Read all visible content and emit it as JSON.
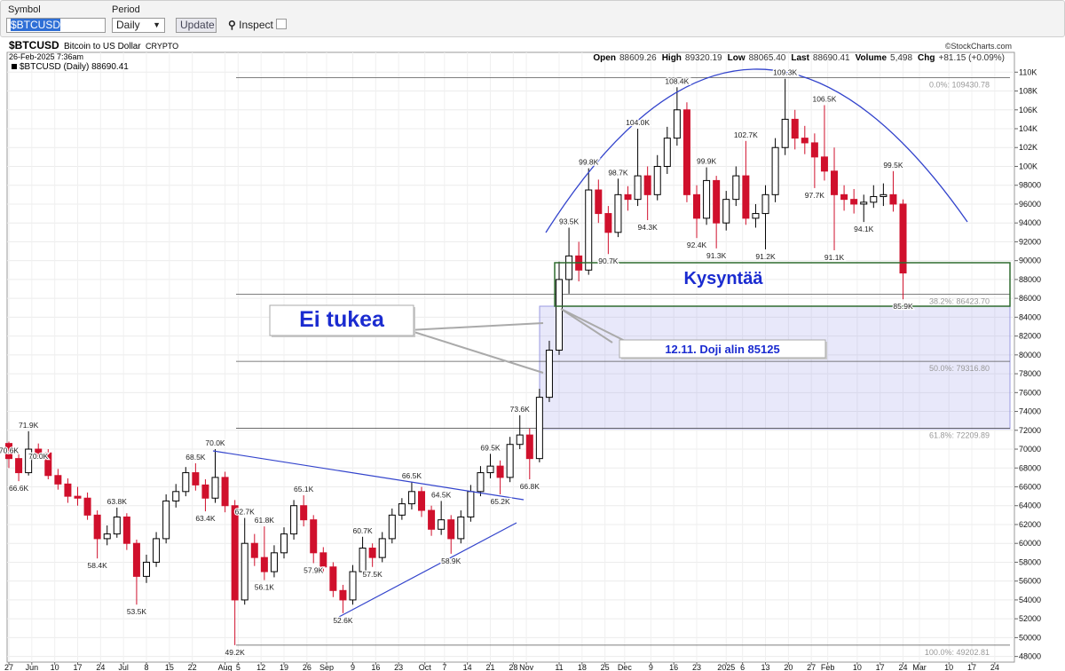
{
  "toolbar": {
    "symbol_label": "Symbol",
    "symbol": "$BTCUSD",
    "period_label": "Period",
    "period": "Daily",
    "update": "Update",
    "inspect": "Inspect"
  },
  "chart_data": {
    "type": "candlestick",
    "symbol": "$BTCUSD",
    "name": "Bitcoin to US Dollar",
    "exchange": "CRYPTO",
    "credit": "©StockCharts.com",
    "date": "26-Feb-2025 7:36am",
    "quote": [
      {
        "label": "Open",
        "value": "88609.26"
      },
      {
        "label": "High",
        "value": "89320.19"
      },
      {
        "label": "Low",
        "value": "88065.40"
      },
      {
        "label": "Last",
        "value": "88690.41"
      },
      {
        "label": "Volume",
        "value": "5,498"
      },
      {
        "label": "Chg",
        "value": "+81.15 (+0.09%)"
      }
    ],
    "legend": "$BTCUSD (Daily) 88690.41",
    "up_color": "#000000",
    "down_color": "#d0102c",
    "candles": {
      "open": [
        70600,
        69000,
        67500,
        70000,
        69600,
        67200,
        66300,
        65000,
        64800,
        63000,
        60500,
        61000,
        62800,
        60000,
        56500,
        58000,
        60500,
        64500,
        65500,
        67500,
        66200,
        64800,
        67000,
        64000,
        54000,
        60000,
        58500,
        57000,
        59000,
        61000,
        64000,
        62500,
        59000,
        57500,
        55000,
        54000,
        57000,
        59500,
        58500,
        60500,
        63000,
        64200,
        65500,
        63500,
        61500,
        62500,
        60500,
        62800,
        65500,
        67500,
        68200,
        67000,
        70500,
        71500,
        69000,
        75500,
        80500,
        88000,
        90500,
        89000,
        97500,
        95000,
        93000,
        97000,
        96500,
        99000,
        97000,
        100000,
        103000,
        106000,
        97000,
        94500,
        98500,
        94000,
        96500,
        99000,
        94500,
        95000,
        97000,
        102000,
        105000,
        103000,
        102500,
        101000,
        99500,
        97000,
        96500,
        96000,
        96200,
        96800,
        97000,
        96000
      ],
      "high": [
        70800,
        69600,
        71900,
        70600,
        70000,
        67900,
        66900,
        66000,
        65400,
        63500,
        61900,
        63800,
        63200,
        60400,
        58800,
        61200,
        65200,
        66300,
        68100,
        68500,
        66800,
        70000,
        67600,
        64600,
        62700,
        61000,
        61800,
        59800,
        61700,
        64600,
        65100,
        63000,
        59600,
        58000,
        55600,
        57700,
        60700,
        60000,
        61200,
        63700,
        64800,
        66500,
        66000,
        64000,
        64500,
        63000,
        63500,
        66200,
        68200,
        69500,
        68800,
        71300,
        73600,
        72200,
        76400,
        81500,
        89900,
        93500,
        92000,
        99800,
        98600,
        95800,
        98700,
        97900,
        104000,
        100000,
        101200,
        104200,
        108400,
        106800,
        98000,
        99900,
        99000,
        97400,
        100000,
        102700,
        96000,
        98000,
        103000,
        109300,
        106000,
        104300,
        103500,
        106500,
        102000,
        98000,
        97600,
        97000,
        98000,
        98200,
        99500,
        96500
      ],
      "low": [
        68000,
        66600,
        67200,
        69000,
        66800,
        65700,
        64300,
        64000,
        62500,
        58400,
        59800,
        60600,
        59300,
        53500,
        55800,
        57500,
        60000,
        63800,
        65000,
        65600,
        63400,
        64300,
        63300,
        49200,
        53500,
        57600,
        56100,
        56400,
        58400,
        60400,
        61800,
        57900,
        56800,
        54300,
        52600,
        53500,
        56500,
        57500,
        58000,
        60000,
        62500,
        63600,
        62800,
        60800,
        60900,
        58900,
        60000,
        62300,
        65000,
        66900,
        65200,
        66500,
        70000,
        66800,
        68600,
        75000,
        80000,
        86500,
        87800,
        88500,
        94000,
        90700,
        92500,
        95300,
        95800,
        94300,
        96400,
        99200,
        102200,
        96200,
        92400,
        93800,
        91300,
        93200,
        95800,
        93800,
        93500,
        91200,
        96200,
        101200,
        101800,
        101300,
        97700,
        98500,
        91100,
        95300,
        95000,
        94100,
        95600,
        95800,
        95200,
        85900
      ],
      "close": [
        69000,
        67500,
        70000,
        69600,
        67200,
        66300,
        65000,
        64800,
        63000,
        60500,
        61000,
        62800,
        60000,
        56500,
        58000,
        60500,
        64500,
        65500,
        67500,
        66200,
        64800,
        67000,
        64000,
        54000,
        60000,
        58500,
        57000,
        59000,
        61000,
        64000,
        62500,
        59000,
        57500,
        55000,
        54000,
        57000,
        59500,
        58500,
        60500,
        63000,
        64200,
        65500,
        63500,
        61500,
        62500,
        60500,
        62800,
        65500,
        67500,
        68200,
        67000,
        70500,
        71500,
        69000,
        75500,
        80500,
        88000,
        90500,
        89000,
        97500,
        95000,
        93000,
        97000,
        96500,
        99000,
        97000,
        100000,
        103000,
        106000,
        97000,
        94500,
        98500,
        94000,
        96500,
        99000,
        94500,
        95000,
        97000,
        102000,
        105000,
        103000,
        102500,
        101000,
        99500,
        97000,
        96500,
        96000,
        96200,
        96800,
        97000,
        96000,
        88690
      ]
    },
    "price_labels": [
      {
        "candle": 0,
        "value": 70600,
        "label": "70.6K"
      },
      {
        "candle": 1,
        "value": 66600,
        "label": "66.6K"
      },
      {
        "candle": 2,
        "value": 71900,
        "label": "71.9K"
      },
      {
        "candle": 3,
        "value": 70000,
        "label": "70.0K"
      },
      {
        "candle": 9,
        "value": 58400,
        "label": "58.4K"
      },
      {
        "candle": 11,
        "value": 63800,
        "label": "63.8K"
      },
      {
        "candle": 13,
        "value": 53500,
        "label": "53.5K"
      },
      {
        "candle": 19,
        "value": 68500,
        "label": "68.5K"
      },
      {
        "candle": 20,
        "value": 63400,
        "label": "63.4K"
      },
      {
        "candle": 21,
        "value": 70000,
        "label": "70.0K"
      },
      {
        "candle": 23,
        "value": 49200,
        "label": "49.2K"
      },
      {
        "candle": 24,
        "value": 62700,
        "label": "62.7K"
      },
      {
        "candle": 26,
        "value": 61800,
        "label": "61.8K"
      },
      {
        "candle": 26,
        "value": 56100,
        "label": "56.1K"
      },
      {
        "candle": 30,
        "value": 65100,
        "label": "65.1K"
      },
      {
        "candle": 31,
        "value": 57900,
        "label": "57.9K"
      },
      {
        "candle": 34,
        "value": 52600,
        "label": "52.6K"
      },
      {
        "candle": 36,
        "value": 60700,
        "label": "60.7K"
      },
      {
        "candle": 37,
        "value": 57500,
        "label": "57.5K"
      },
      {
        "candle": 41,
        "value": 66500,
        "label": "66.5K"
      },
      {
        "candle": 44,
        "value": 64500,
        "label": "64.5K"
      },
      {
        "candle": 45,
        "value": 58900,
        "label": "58.9K"
      },
      {
        "candle": 49,
        "value": 69500,
        "label": "69.5K"
      },
      {
        "candle": 50,
        "value": 65200,
        "label": "65.2K"
      },
      {
        "candle": 52,
        "value": 73600,
        "label": "73.6K"
      },
      {
        "candle": 53,
        "value": 66800,
        "label": "66.8K"
      },
      {
        "candle": 57,
        "value": 93500,
        "label": "93.5K"
      },
      {
        "candle": 59,
        "value": 99800,
        "label": "99.8K"
      },
      {
        "candle": 61,
        "value": 90700,
        "label": "90.7K"
      },
      {
        "candle": 62,
        "value": 98700,
        "label": "98.7K"
      },
      {
        "candle": 64,
        "value": 104000,
        "label": "104.0K"
      },
      {
        "candle": 65,
        "value": 94300,
        "label": "94.3K"
      },
      {
        "candle": 68,
        "value": 108400,
        "label": "108.4K"
      },
      {
        "candle": 70,
        "value": 92400,
        "label": "92.4K"
      },
      {
        "candle": 71,
        "value": 99900,
        "label": "99.9K"
      },
      {
        "candle": 72,
        "value": 91300,
        "label": "91.3K"
      },
      {
        "candle": 75,
        "value": 102700,
        "label": "102.7K"
      },
      {
        "candle": 77,
        "value": 91200,
        "label": "91.2K"
      },
      {
        "candle": 79,
        "value": 109300,
        "label": "109.3K"
      },
      {
        "candle": 82,
        "value": 97700,
        "label": "97.7K"
      },
      {
        "candle": 83,
        "value": 106500,
        "label": "106.5K"
      },
      {
        "candle": 84,
        "value": 91100,
        "label": "91.1K"
      },
      {
        "candle": 87,
        "value": 94100,
        "label": "94.1K"
      },
      {
        "candle": 90,
        "value": 99500,
        "label": "99.5K"
      },
      {
        "candle": 91,
        "value": 85900,
        "label": "85.9K"
      }
    ],
    "fib_levels": [
      {
        "value": 109430.78,
        "label": "0.0%: 109430.78"
      },
      {
        "value": 86423.7,
        "label": "38.2%: 86423.70"
      },
      {
        "value": 79316.8,
        "label": "50.0%: 79316.80"
      },
      {
        "value": 72209.89,
        "label": "61.8%: 72209.89"
      },
      {
        "value": 49202.81,
        "label": "100.0%: 49202.81"
      }
    ],
    "annotations": {
      "demand": "Kysyntää",
      "no_support": "Ei tukea",
      "doji": "12.11. Doji alin 85125"
    },
    "xlim": [
      0,
      307
    ],
    "xticks": [
      {
        "value": 0,
        "label": "27"
      },
      {
        "value": 7,
        "label": "Jun"
      },
      {
        "value": 14,
        "label": "10"
      },
      {
        "value": 21,
        "label": "17"
      },
      {
        "value": 28,
        "label": "24"
      },
      {
        "value": 35,
        "label": "Jul"
      },
      {
        "value": 42,
        "label": "8"
      },
      {
        "value": 49,
        "label": "15"
      },
      {
        "value": 56,
        "label": "22"
      },
      {
        "value": 66,
        "label": "Aug"
      },
      {
        "value": 70,
        "label": "5"
      },
      {
        "value": 77,
        "label": "12"
      },
      {
        "value": 84,
        "label": "19"
      },
      {
        "value": 91,
        "label": "26"
      },
      {
        "value": 97,
        "label": "Sep"
      },
      {
        "value": 105,
        "label": "9"
      },
      {
        "value": 112,
        "label": "16"
      },
      {
        "value": 119,
        "label": "23"
      },
      {
        "value": 127,
        "label": "Oct"
      },
      {
        "value": 133,
        "label": "7"
      },
      {
        "value": 140,
        "label": "14"
      },
      {
        "value": 147,
        "label": "21"
      },
      {
        "value": 154,
        "label": "28"
      },
      {
        "value": 158,
        "label": "Nov"
      },
      {
        "value": 168,
        "label": "11"
      },
      {
        "value": 175,
        "label": "18"
      },
      {
        "value": 182,
        "label": "25"
      },
      {
        "value": 188,
        "label": "Dec"
      },
      {
        "value": 196,
        "label": "9"
      },
      {
        "value": 203,
        "label": "16"
      },
      {
        "value": 210,
        "label": "23"
      },
      {
        "value": 219,
        "label": "2025"
      },
      {
        "value": 224,
        "label": "6"
      },
      {
        "value": 231,
        "label": "13"
      },
      {
        "value": 238,
        "label": "20"
      },
      {
        "value": 245,
        "label": "27"
      },
      {
        "value": 250,
        "label": "Feb"
      },
      {
        "value": 259,
        "label": "10"
      },
      {
        "value": 266,
        "label": "17"
      },
      {
        "value": 273,
        "label": "24"
      },
      {
        "value": 278,
        "label": "Mar"
      },
      {
        "value": 287,
        "label": "10"
      },
      {
        "value": 294,
        "label": "17"
      },
      {
        "value": 301,
        "label": "24"
      }
    ],
    "ylim": [
      47400,
      112100
    ],
    "yticks": [
      48000,
      50000,
      52000,
      54000,
      56000,
      58000,
      60000,
      62000,
      64000,
      66000,
      68000,
      70000,
      72000,
      74000,
      76000,
      78000,
      80000,
      82000,
      84000,
      86000,
      88000,
      90000,
      92000,
      94000,
      96000,
      98000,
      {
        "value": 100000,
        "label": "100K"
      },
      {
        "value": 102000,
        "label": "102K"
      },
      {
        "value": 104000,
        "label": "104K"
      },
      {
        "value": 106000,
        "label": "106K"
      },
      {
        "value": 108000,
        "label": "108K"
      },
      {
        "value": 110000,
        "label": "110K"
      }
    ],
    "grid": true
  }
}
